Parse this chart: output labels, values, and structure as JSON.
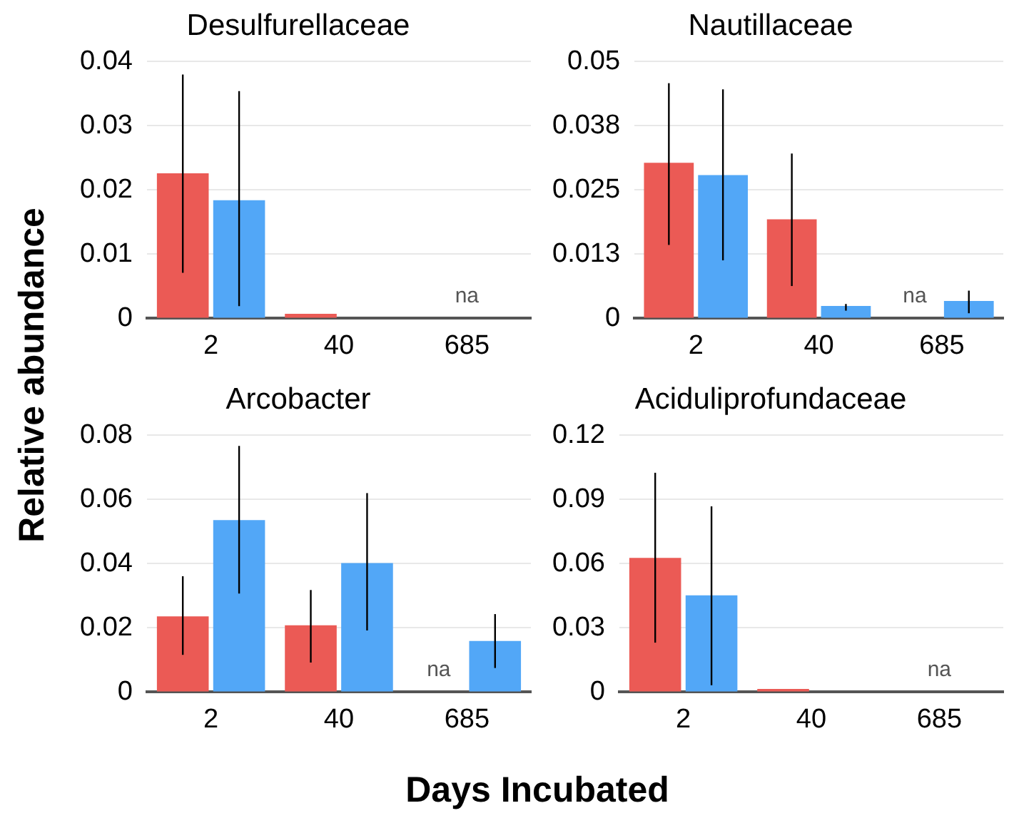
{
  "chart_data": [
    {
      "type": "bar",
      "title": "Desulfurellaceae",
      "ylabel": "Relative abundance",
      "xlabel": "Days Incubated",
      "categories": [
        "2",
        "40",
        "685"
      ],
      "ylim": [
        0,
        0.04
      ],
      "yticks": [
        0,
        0.01,
        0.02,
        0.03,
        0.04
      ],
      "grid": "y",
      "legend": false,
      "series": [
        {
          "color": "#eb5a55",
          "values": [
            0.0226,
            0.0007,
            null
          ],
          "errors": [
            [
              0.0071,
              0.038
            ],
            null,
            null
          ]
        },
        {
          "color": "#52a7f7",
          "values": [
            0.0184,
            0,
            null
          ],
          "errors": [
            [
              0.0019,
              0.0354
            ],
            null,
            null
          ]
        }
      ],
      "annotations": [
        "na"
      ]
    },
    {
      "type": "bar",
      "title": "Nautillaceae",
      "categories": [
        "2",
        "40",
        "685"
      ],
      "ylim": [
        0,
        0.05
      ],
      "yticks": [
        0,
        {
          "value": 0.0125,
          "label": "0.013"
        },
        0.025,
        {
          "value": 0.0375,
          "label": "0.038"
        },
        0.05
      ],
      "grid": "y",
      "legend": false,
      "series": [
        {
          "color": "#eb5a55",
          "values": [
            0.0303,
            0.0193,
            null
          ],
          "errors": [
            [
              0.0143,
              0.0458
            ],
            [
              0.0063,
              0.0321
            ],
            null
          ]
        },
        {
          "color": "#52a7f7",
          "values": [
            0.0279,
            0.0024,
            0.0034
          ],
          "errors": [
            [
              0.0113,
              0.0446
            ],
            [
              0.0015,
              0.0028
            ],
            [
              0.001,
              0.0054
            ]
          ]
        }
      ],
      "annotations": [
        {
          "text": "na",
          "x": "685",
          "y": 0
        }
      ]
    },
    {
      "type": "bar",
      "title": "Arcobacter",
      "categories": [
        "2",
        "40",
        "685"
      ],
      "ylim": [
        0,
        0.08
      ],
      "yticks": [
        0,
        0.02,
        0.04,
        0.06,
        0.08
      ],
      "grid": "y",
      "legend": false,
      "series": [
        {
          "color": "#eb5a55",
          "values": [
            0.0236,
            0.0208,
            null
          ],
          "errors": [
            [
              0.0116,
              0.0361
            ],
            [
              0.0092,
              0.0318
            ],
            null
          ]
        },
        {
          "color": "#52a7f7",
          "values": [
            0.0536,
            0.0402,
            0.0159
          ],
          "errors": [
            [
              0.0307,
              0.0767
            ],
            [
              0.0192,
              0.062
            ],
            [
              0.0075,
              0.0243
            ]
          ]
        }
      ],
      "annotations": [
        {
          "text": "na",
          "x": "685",
          "y": 0
        }
      ]
    },
    {
      "type": "bar",
      "title": "Aciduliprofundaceae",
      "categories": [
        "2",
        "40",
        "685"
      ],
      "ylim": [
        0,
        0.12
      ],
      "yticks": [
        0,
        0.03,
        0.06,
        0.09,
        0.12
      ],
      "grid": "y",
      "legend": false,
      "series": [
        {
          "color": "#eb5a55",
          "values": [
            0.0627,
            0.0015,
            null
          ],
          "errors": [
            [
              0.0231,
              0.1025
            ],
            null,
            null
          ]
        },
        {
          "color": "#52a7f7",
          "values": [
            0.0452,
            0,
            null
          ],
          "errors": [
            [
              0.0032,
              0.0868
            ],
            null,
            null
          ]
        }
      ],
      "annotations": [
        "na"
      ]
    }
  ]
}
